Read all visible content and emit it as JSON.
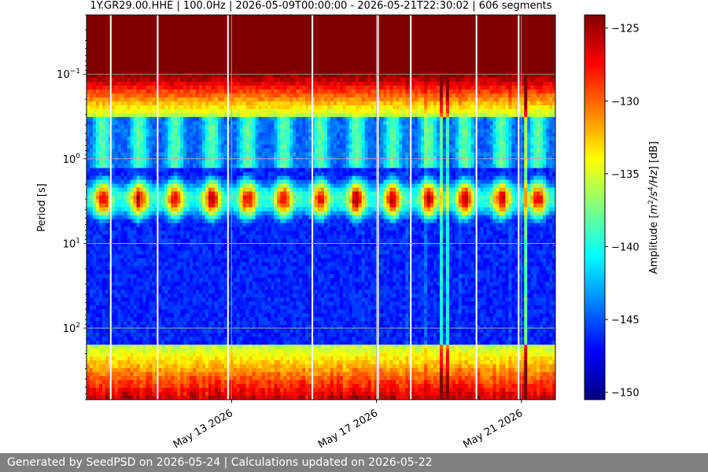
{
  "chart_data": {
    "type": "heatmap",
    "title": "1Y.GR29.00.HHE | 100.0Hz | 2026-05-09T00:00:00 - 2026-05-21T22:30:02 | 606 segments",
    "xlabel": "",
    "ylabel": "Period [s]",
    "x_range": [
      "2026-05-09T00:00:00",
      "2026-05-21T22:30:02"
    ],
    "x_ticks": [
      "May 13 2026",
      "May 17 2026",
      "May 21 2026"
    ],
    "x_tick_values": [
      "2026-05-13",
      "2026-05-17",
      "2026-05-21"
    ],
    "y_scale": "log",
    "y_ticks": [
      {
        "value": 0.1,
        "base": "10",
        "exp": "−1"
      },
      {
        "value": 1,
        "base": "10",
        "exp": "0"
      },
      {
        "value": 10,
        "base": "10",
        "exp": "1"
      },
      {
        "value": 100,
        "base": "10",
        "exp": "2"
      }
    ],
    "ylim": [
      0.02,
      700
    ],
    "y_inverted": true,
    "grid": true,
    "colorbar": {
      "label_main": "Amplitude [",
      "label_m": "m",
      "label_exp2": "2",
      "label_slash_s": "/s",
      "label_exp4": "4",
      "label_slash_hz": "/Hz",
      "label_end": "] [dB]",
      "range": [
        -150.5,
        -124.1
      ],
      "ticks": [
        "−125",
        "−130",
        "−135",
        "−140",
        "−145",
        "−150"
      ],
      "tick_values": [
        -125,
        -130,
        -135,
        -140,
        -145,
        -150
      ],
      "colormap": "jet"
    },
    "series_summary": {
      "microseism_peak_period_s": 3,
      "daily_peaks": [
        "2026-05-09",
        "2026-05-10",
        "2026-05-11",
        "2026-05-12",
        "2026-05-13",
        "2026-05-14",
        "2026-05-15",
        "2026-05-16",
        "2026-05-17",
        "2026-05-18",
        "2026-05-19",
        "2026-05-20",
        "2026-05-21"
      ]
    }
  },
  "footer": {
    "text": "Generated by SeedPSD on 2026-05-24 | Calculations updated on 2026-05-22"
  }
}
